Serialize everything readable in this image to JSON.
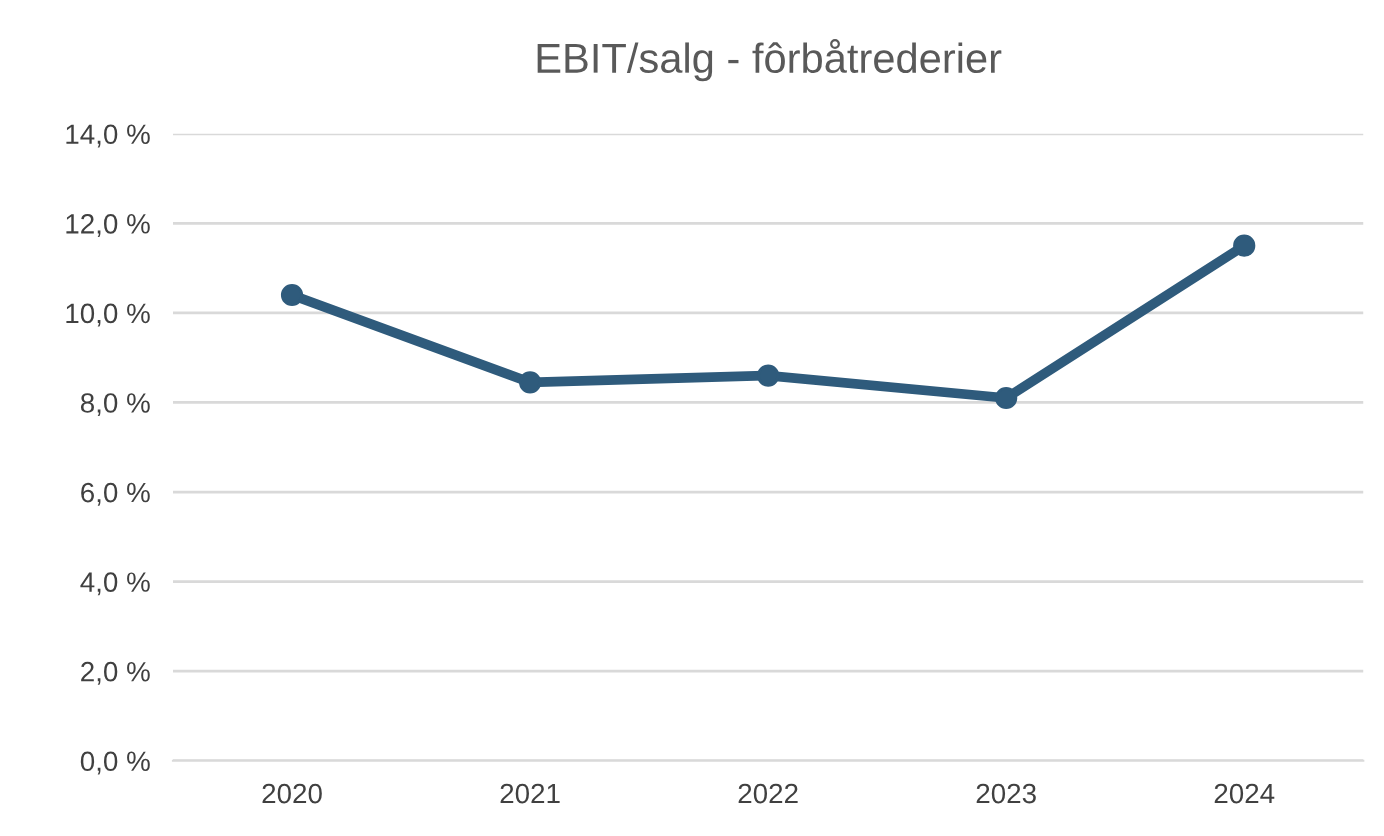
{
  "chart_data": {
    "type": "line",
    "title": "EBIT/salg - fôrbåtrederier",
    "categories": [
      "2020",
      "2021",
      "2022",
      "2023",
      "2024"
    ],
    "series": [
      {
        "color": "#2f5b7c",
        "values": [
          10.4,
          8.45,
          8.6,
          8.1,
          11.5
        ]
      }
    ],
    "ylim": [
      0,
      14
    ],
    "yticks": [
      {
        "value": 0,
        "label": "0,0 %"
      },
      {
        "value": 2,
        "label": "2,0 %"
      },
      {
        "value": 4,
        "label": "4,0 %"
      },
      {
        "value": 6,
        "label": "6,0 %"
      },
      {
        "value": 8,
        "label": "8,0 %"
      },
      {
        "value": 10,
        "label": "10,0 %"
      },
      {
        "value": 12,
        "label": "12,0 %"
      },
      {
        "value": 14,
        "label": "14,0 %"
      }
    ],
    "grid": "y",
    "legend": false,
    "marker": "circle",
    "line_style": "solid"
  }
}
